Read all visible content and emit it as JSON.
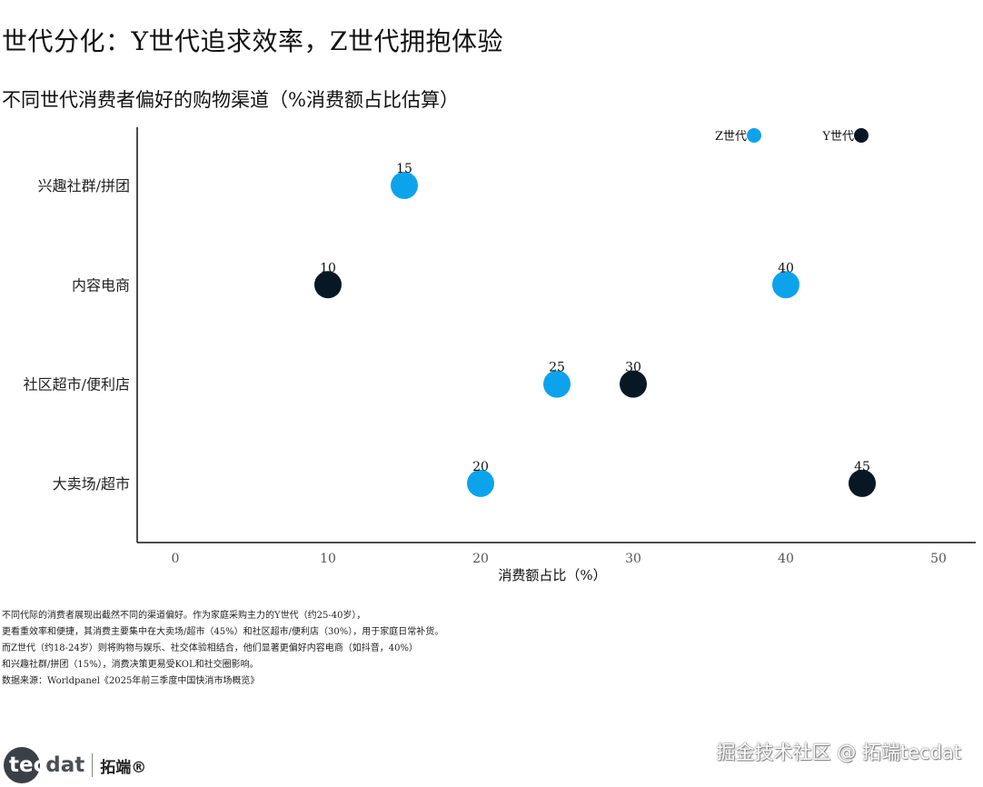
{
  "page": {
    "title": "世代分化：Y世代追求效率，Z世代拥抱体验",
    "notes": [
      "不同代际的消费者展现出截然不同的渠道偏好。作为家庭采购主力的Y世代（约25-40岁），",
      "更看重效率和便捷，其消费主要集中在大卖场/超市（45%）和社区超市/便利店（30%），用于家庭日常补货。",
      "而Z世代（约18-24岁）则将购物与娱乐、社交体验相结合，他们显著更偏好内容电商（如抖音，40%）",
      "和兴趣社群/拼团（15%），消费决策更易受KOL和社交圈影响。",
      "数据来源：Worldpanel《2025年前三季度中国快消市场概览》"
    ],
    "logo": {
      "word_a": "tec",
      "word_b": "dat",
      "cn": "拓端®"
    },
    "watermark": "掘金技术社区 @ 拓端tecdat"
  },
  "chart_data": {
    "type": "scatter",
    "title": "不同世代消费者偏好的购物渠道（%消费额占比估算）",
    "xlabel": "消费额占比（%）",
    "ylabel": "",
    "xlim": [
      0,
      50
    ],
    "xticks": [
      0,
      10,
      20,
      30,
      40,
      50
    ],
    "categories": [
      "兴趣社群/拼团",
      "内容电商",
      "社区超市/便利店",
      "大卖场/超市"
    ],
    "series": [
      {
        "name": "Z世代",
        "color": "#0ca3ec",
        "values": [
          15,
          40,
          25,
          20
        ]
      },
      {
        "name": "Y世代",
        "color": "#071824",
        "values": [
          null,
          10,
          30,
          45
        ]
      }
    ],
    "legend": "top-right",
    "grid": false
  }
}
